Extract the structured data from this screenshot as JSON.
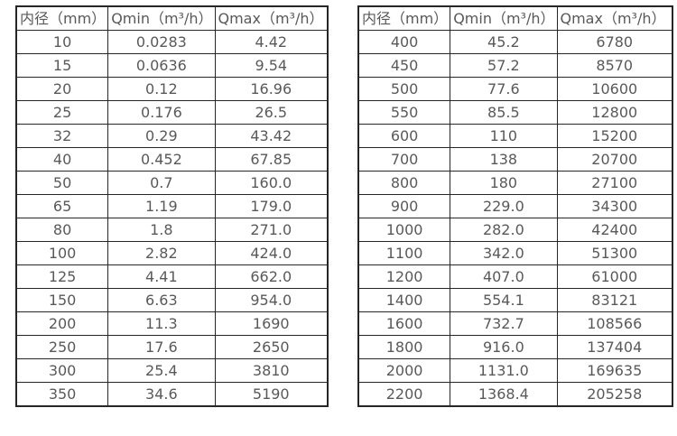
{
  "colors": {
    "background": "#ffffff",
    "text": "#595959",
    "border": "#262626"
  },
  "tables": [
    {
      "name": "small-diameter-flow-table",
      "headers": [
        "内径（mm）",
        "Qmin（m³/h）",
        "Qmax（m³/h）"
      ],
      "rows": [
        [
          "10",
          "0.0283",
          "4.42"
        ],
        [
          "15",
          "0.0636",
          "9.54"
        ],
        [
          "20",
          "0.12",
          "16.96"
        ],
        [
          "25",
          "0.176",
          "26.5"
        ],
        [
          "32",
          "0.29",
          "43.42"
        ],
        [
          "40",
          "0.452",
          "67.85"
        ],
        [
          "50",
          "0.7",
          "160.0"
        ],
        [
          "65",
          "1.19",
          "179.0"
        ],
        [
          "80",
          "1.8",
          "271.0"
        ],
        [
          "100",
          "2.82",
          "424.0"
        ],
        [
          "125",
          "4.41",
          "662.0"
        ],
        [
          "150",
          "6.63",
          "954.0"
        ],
        [
          "200",
          "11.3",
          "1690"
        ],
        [
          "250",
          "17.6",
          "2650"
        ],
        [
          "300",
          "25.4",
          "3810"
        ],
        [
          "350",
          "34.6",
          "5190"
        ]
      ]
    },
    {
      "name": "large-diameter-flow-table",
      "headers": [
        "内径（mm）",
        "Qmin（m³/h）",
        "Qmax（m³/h）"
      ],
      "rows": [
        [
          "400",
          "45.2",
          "6780"
        ],
        [
          "450",
          "57.2",
          "8570"
        ],
        [
          "500",
          "77.6",
          "10600"
        ],
        [
          "550",
          "85.5",
          "12800"
        ],
        [
          "600",
          "110",
          "15200"
        ],
        [
          "700",
          "138",
          "20700"
        ],
        [
          "800",
          "180",
          "27100"
        ],
        [
          "900",
          "229.0",
          "34300"
        ],
        [
          "1000",
          "282.0",
          "42400"
        ],
        [
          "1100",
          "342.0",
          "51300"
        ],
        [
          "1200",
          "407.0",
          "61000"
        ],
        [
          "1400",
          "554.1",
          "83121"
        ],
        [
          "1600",
          "732.7",
          "108566"
        ],
        [
          "1800",
          "916.0",
          "137404"
        ],
        [
          "2000",
          "1131.0",
          "169635"
        ],
        [
          "2200",
          "1368.4",
          "205258"
        ]
      ]
    }
  ]
}
